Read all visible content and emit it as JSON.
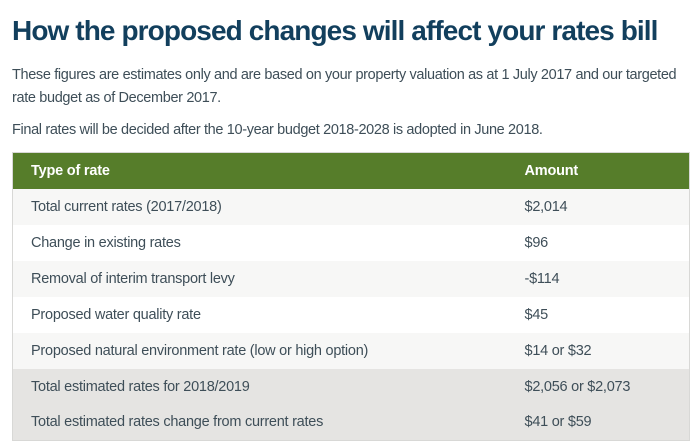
{
  "page": {
    "title": "How the proposed changes will affect your rates bill",
    "intro_1": "These figures are estimates only and are based on your property valuation as at 1 July 2017 and our targeted rate budget as of December 2017.",
    "intro_2": "Final rates will be decided after the 10-year budget 2018-2028 is adopted in June 2018."
  },
  "colors": {
    "heading": "#123f5d",
    "body_text": "#3e4e58",
    "table_header_bg": "#567d2a",
    "table_header_text": "#ffffff",
    "row_stripe": "#f7f7f6",
    "row_white": "#ffffff",
    "row_total": "#e5e4e2",
    "table_border": "#d8d8d6"
  },
  "table": {
    "columns": [
      "Type of rate",
      "Amount"
    ],
    "rows": [
      {
        "type": "Total current rates (2017/2018)",
        "amount": "$2,014",
        "style": "stripe"
      },
      {
        "type": "Change in existing rates",
        "amount": "$96",
        "style": "white"
      },
      {
        "type": "Removal of interim transport levy",
        "amount": "-$114",
        "style": "stripe"
      },
      {
        "type": "Proposed water quality rate",
        "amount": "$45",
        "style": "white"
      },
      {
        "type": "Proposed natural environment rate (low or high option)",
        "amount": "$14 or $32",
        "style": "stripe"
      },
      {
        "type": "Total estimated rates for 2018/2019",
        "amount": "$2,056 or $2,073",
        "style": "total"
      },
      {
        "type": "Total estimated rates change from current rates",
        "amount": "$41 or $59",
        "style": "total"
      }
    ]
  }
}
